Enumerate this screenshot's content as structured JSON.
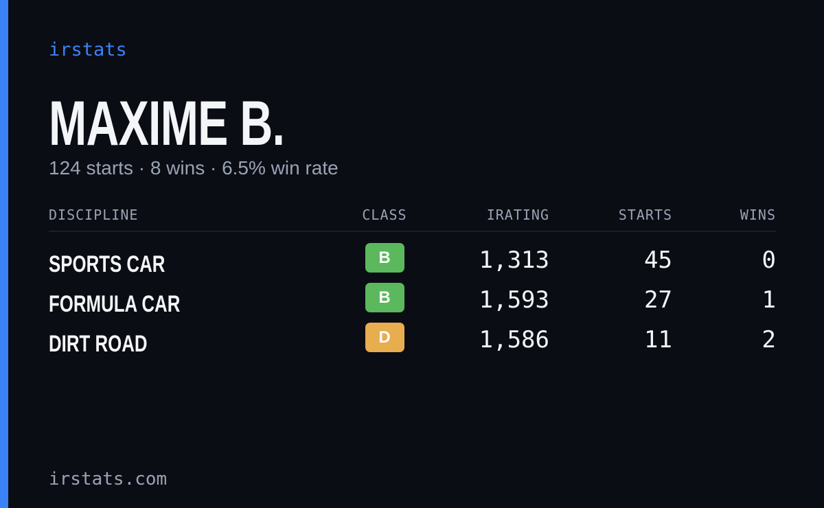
{
  "brand": "irstats",
  "driver": {
    "name": "MAXIME B.",
    "summary": "124 starts · 8 wins · 6.5% win rate"
  },
  "table": {
    "headers": [
      "DISCIPLINE",
      "CLASS",
      "IRATING",
      "STARTS",
      "WINS"
    ],
    "rows": [
      {
        "discipline": "SPORTS CAR",
        "class": "B",
        "class_color": "#5cb85c",
        "irating": "1,313",
        "starts": "45",
        "wins": "0"
      },
      {
        "discipline": "FORMULA CAR",
        "class": "B",
        "class_color": "#5cb85c",
        "irating": "1,593",
        "starts": "27",
        "wins": "1"
      },
      {
        "discipline": "DIRT ROAD",
        "class": "D",
        "class_color": "#e8ad4f",
        "irating": "1,586",
        "starts": "11",
        "wins": "2"
      }
    ]
  },
  "footer": "irstats.com"
}
